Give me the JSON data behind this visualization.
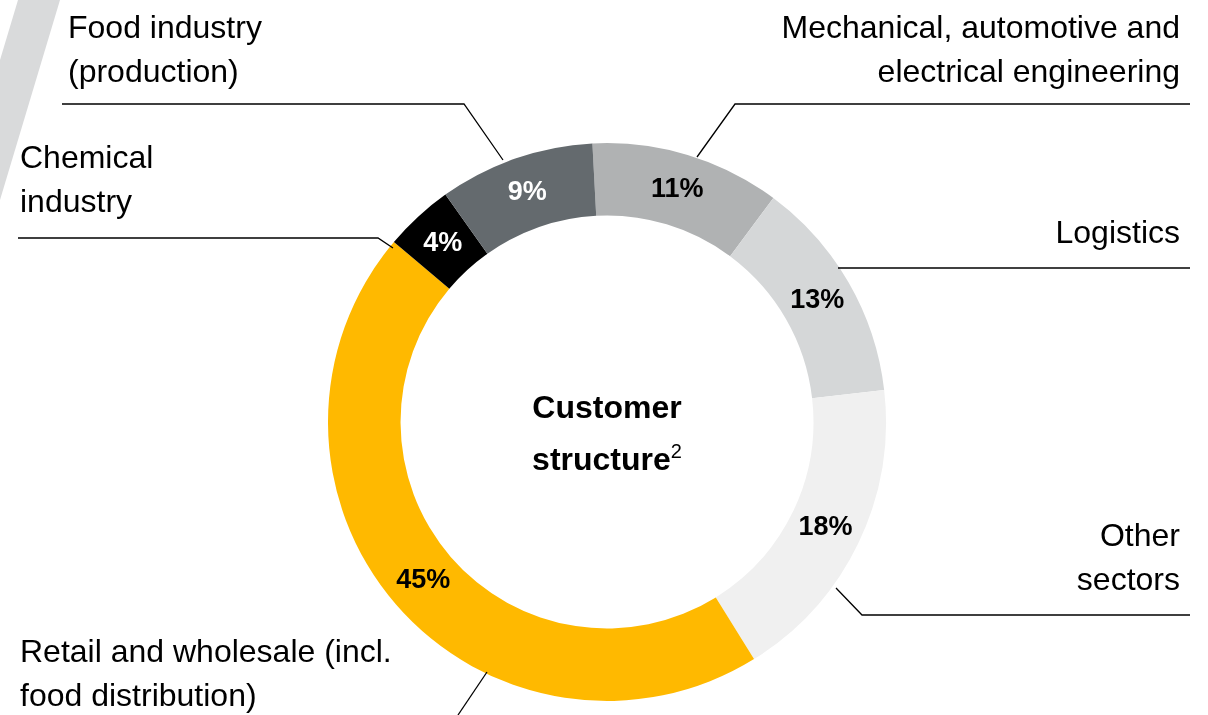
{
  "chart_data": {
    "type": "donut",
    "title": "Customer structure$^{2}$",
    "categories": [
      "Mechanical, automotive and electrical engineering",
      "Logistics",
      "Other sectors",
      "Retail and wholesale (incl. food distribution)",
      "Chemical industry",
      "Food industry (production)"
    ],
    "values": [
      11,
      13,
      18,
      45,
      4,
      9
    ],
    "colors": [
      "#b0b2b3",
      "#d5d7d8",
      "#f0f0f0",
      "#ffb900",
      "#000000",
      "#646a6e"
    ],
    "value_labels": [
      "11%",
      "13%",
      "18%",
      "45%",
      "4%",
      "9%"
    ],
    "legend": false
  }
}
